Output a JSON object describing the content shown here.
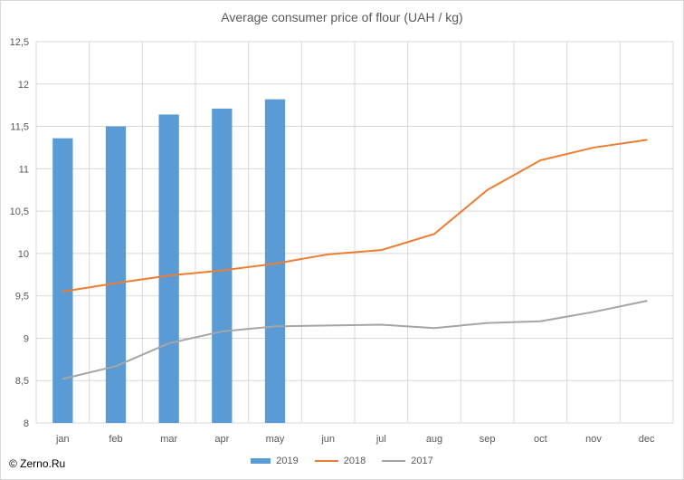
{
  "chart_data": {
    "type": "bar",
    "title": "Average consumer price of flour (UAH / kg)",
    "categories": [
      "jan",
      "feb",
      "mar",
      "apr",
      "may",
      "jun",
      "jul",
      "aug",
      "sep",
      "oct",
      "nov",
      "dec"
    ],
    "ylim": [
      8,
      12.5
    ],
    "yticks": [
      "8",
      "8,5",
      "9",
      "9,5",
      "10",
      "10,5",
      "11",
      "11,5",
      "12",
      "12,5"
    ],
    "ytick_values": [
      8,
      8.5,
      9,
      9.5,
      10,
      10.5,
      11,
      11.5,
      12,
      12.5
    ],
    "grid": true,
    "legend_position": "bottom",
    "series": [
      {
        "name": "2019",
        "type": "bar",
        "color": "#5B9BD5",
        "values": [
          11.36,
          11.5,
          11.64,
          11.71,
          11.82,
          null,
          null,
          null,
          null,
          null,
          null,
          null
        ]
      },
      {
        "name": "2018",
        "type": "line",
        "color": "#ED7D31",
        "values": [
          9.55,
          9.65,
          9.74,
          9.8,
          9.88,
          9.99,
          10.04,
          10.23,
          10.75,
          11.1,
          11.25,
          11.34
        ]
      },
      {
        "name": "2017",
        "type": "line",
        "color": "#A5A5A5",
        "values": [
          8.52,
          8.67,
          8.94,
          9.08,
          9.14,
          9.15,
          9.16,
          9.12,
          9.18,
          9.2,
          9.31,
          9.44
        ]
      }
    ]
  },
  "copyright": "© Zerno.Ru"
}
